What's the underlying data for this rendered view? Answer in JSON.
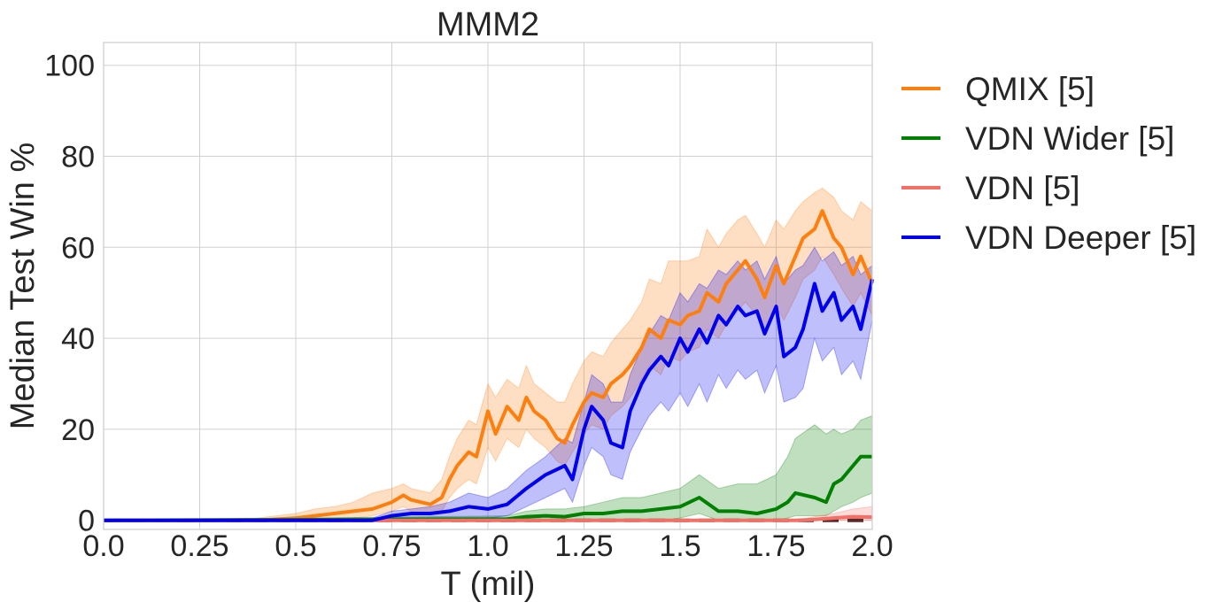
{
  "chart_data": {
    "type": "line",
    "title": "MMM2",
    "xlabel": "T (mil)",
    "ylabel": "Median Test Win %",
    "xlim": [
      0,
      2.0
    ],
    "ylim": [
      -2,
      105
    ],
    "xticks": [
      0.0,
      0.25,
      0.5,
      0.75,
      1.0,
      1.25,
      1.5,
      1.75,
      2.0
    ],
    "xtick_labels": [
      "0.0",
      "0.25",
      "0.5",
      "0.75",
      "1.0",
      "1.25",
      "1.5",
      "1.75",
      "2.0"
    ],
    "yticks": [
      0,
      20,
      40,
      60,
      80,
      100
    ],
    "ytick_labels": [
      "0",
      "20",
      "40",
      "60",
      "80",
      "100"
    ],
    "grid": true,
    "legend_placement": "outside right, top",
    "series": [
      {
        "name": "QMIX [5]",
        "color": "#ff7f0e",
        "x": [
          0.0,
          0.4,
          0.5,
          0.55,
          0.6,
          0.65,
          0.7,
          0.75,
          0.78,
          0.8,
          0.85,
          0.88,
          0.9,
          0.92,
          0.95,
          0.97,
          1.0,
          1.02,
          1.05,
          1.08,
          1.1,
          1.12,
          1.15,
          1.18,
          1.2,
          1.22,
          1.25,
          1.27,
          1.3,
          1.32,
          1.35,
          1.37,
          1.4,
          1.42,
          1.45,
          1.47,
          1.5,
          1.52,
          1.55,
          1.57,
          1.6,
          1.62,
          1.65,
          1.67,
          1.7,
          1.72,
          1.75,
          1.77,
          1.8,
          1.82,
          1.85,
          1.87,
          1.9,
          1.92,
          1.95,
          1.97,
          2.0
        ],
        "y": [
          0,
          0,
          0.5,
          1,
          1.5,
          2,
          2.5,
          4,
          5.5,
          4.5,
          3.5,
          5,
          9,
          12,
          15,
          14,
          24,
          19,
          25,
          22,
          27,
          24,
          22,
          18,
          17,
          21,
          26,
          28,
          27,
          30,
          32,
          34,
          38,
          42,
          40,
          44,
          43,
          45,
          46,
          50,
          48,
          52,
          55,
          57,
          53,
          49,
          56,
          52,
          58,
          62,
          64,
          68,
          62,
          60,
          54,
          58,
          52
        ],
        "upper": [
          0,
          0.5,
          1.5,
          2.5,
          3,
          4,
          6,
          7,
          8,
          7,
          6,
          9,
          14,
          18,
          22,
          21,
          30,
          27,
          31,
          29,
          34,
          30,
          28,
          26,
          26,
          30,
          35,
          37,
          36,
          39,
          42,
          44,
          48,
          53,
          52,
          57,
          57,
          57,
          58,
          64,
          60,
          63,
          66,
          67,
          63,
          60,
          66,
          64,
          68,
          70,
          72,
          73,
          71,
          68,
          66,
          70,
          68
        ],
        "lower": [
          0,
          0,
          0,
          0,
          0,
          0.5,
          1,
          2,
          3,
          2,
          1.5,
          2,
          5,
          7,
          9,
          8,
          16,
          13,
          18,
          16,
          20,
          18,
          16,
          13,
          12,
          15,
          19,
          21,
          20,
          23,
          25,
          27,
          31,
          34,
          32,
          36,
          35,
          37,
          38,
          42,
          40,
          43,
          46,
          48,
          45,
          41,
          47,
          44,
          49,
          53,
          55,
          58,
          54,
          51,
          47,
          50,
          45
        ]
      },
      {
        "name": "VDN Wider [5]",
        "color": "#008000",
        "x": [
          0.0,
          1.05,
          1.1,
          1.15,
          1.2,
          1.25,
          1.3,
          1.35,
          1.4,
          1.45,
          1.5,
          1.55,
          1.6,
          1.65,
          1.7,
          1.75,
          1.78,
          1.8,
          1.85,
          1.88,
          1.9,
          1.92,
          1.95,
          1.97,
          2.0
        ],
        "y": [
          0,
          0.3,
          0.8,
          1,
          0.8,
          1.5,
          1.5,
          2,
          2,
          2.5,
          3,
          5,
          2,
          2,
          1.5,
          2.5,
          4,
          6,
          5,
          4,
          8,
          9,
          12,
          14,
          14
        ],
        "upper": [
          0,
          1,
          2,
          2.5,
          2.5,
          3,
          4,
          5,
          5,
          6,
          7,
          10,
          7,
          8,
          8,
          10,
          14,
          18,
          21,
          19,
          20,
          19,
          20,
          22,
          23
        ],
        "lower": [
          0,
          0,
          0,
          0,
          0,
          0,
          0,
          0,
          0,
          0,
          0.5,
          1.5,
          0,
          0,
          0,
          0,
          0.5,
          1,
          1,
          1,
          2,
          3,
          4,
          5,
          6
        ]
      },
      {
        "name": "VDN [5]",
        "color": "#f46f66",
        "x": [
          0.0,
          1.8,
          1.85,
          1.9,
          1.95,
          2.0
        ],
        "y": [
          0,
          0,
          0.2,
          0.5,
          0.8,
          0.7
        ],
        "upper": [
          0,
          0,
          0.8,
          1.5,
          2.5,
          3
        ],
        "lower": [
          0,
          0,
          0,
          0,
          0,
          0
        ]
      },
      {
        "name": "VDN Deeper [5]",
        "color": "#0000ee",
        "x": [
          0.0,
          0.7,
          0.75,
          0.8,
          0.85,
          0.9,
          0.95,
          1.0,
          1.05,
          1.1,
          1.15,
          1.2,
          1.22,
          1.25,
          1.27,
          1.3,
          1.32,
          1.35,
          1.37,
          1.4,
          1.42,
          1.45,
          1.47,
          1.5,
          1.52,
          1.55,
          1.57,
          1.6,
          1.62,
          1.65,
          1.67,
          1.7,
          1.72,
          1.75,
          1.77,
          1.8,
          1.82,
          1.85,
          1.87,
          1.9,
          1.92,
          1.95,
          1.97,
          2.0
        ],
        "y": [
          0,
          0,
          1,
          1.5,
          1.5,
          2,
          3,
          2.5,
          3.5,
          7,
          10,
          12,
          9,
          20,
          25,
          22,
          17,
          16,
          24,
          30,
          33,
          36,
          34,
          40,
          37,
          42,
          39,
          45,
          43,
          47,
          45,
          46,
          41,
          47,
          36,
          38,
          42,
          52,
          46,
          50,
          44,
          47,
          42,
          53
        ],
        "upper": [
          0,
          0.5,
          2,
          2.5,
          3,
          4,
          6,
          5,
          7,
          11,
          14,
          18,
          17,
          26,
          32,
          30,
          26,
          26,
          32,
          38,
          41,
          45,
          44,
          50,
          48,
          52,
          51,
          55,
          54,
          57,
          55,
          57,
          53,
          58,
          52,
          55,
          56,
          60,
          57,
          59,
          56,
          58,
          54,
          56
        ],
        "lower": [
          0,
          0,
          0,
          0,
          0,
          0,
          0.5,
          0.5,
          1,
          3,
          5,
          7,
          4,
          12,
          16,
          14,
          10,
          9,
          15,
          20,
          23,
          26,
          24,
          28,
          25,
          30,
          26,
          32,
          29,
          33,
          31,
          33,
          28,
          34,
          26,
          27,
          29,
          40,
          35,
          38,
          32,
          35,
          31,
          44
        ]
      }
    ],
    "baseline": {
      "color": "#5a2a2a",
      "y": 0,
      "style": "dashed"
    }
  }
}
